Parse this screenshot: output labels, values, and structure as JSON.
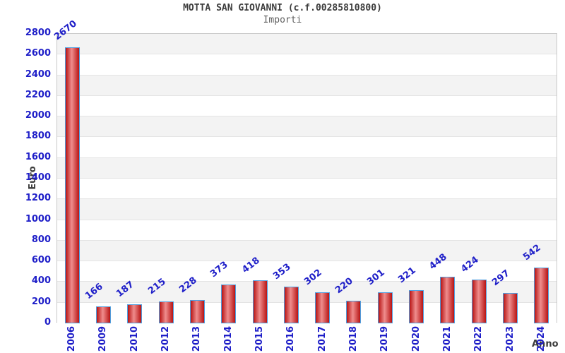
{
  "header": {
    "title": "MOTTA SAN GIOVANNI (c.f.00285810800)",
    "subtitle": "Importi"
  },
  "chart_data": {
    "type": "bar",
    "title": "MOTTA SAN GIOVANNI (c.f.00285810800)",
    "subtitle": "Importi",
    "xlabel": "Anno",
    "ylabel": "Euro",
    "categories": [
      "2006",
      "2009",
      "2010",
      "2012",
      "2013",
      "2014",
      "2015",
      "2016",
      "2017",
      "2018",
      "2019",
      "2020",
      "2021",
      "2022",
      "2023",
      "2024"
    ],
    "values": [
      2670,
      166,
      187,
      215,
      228,
      373,
      418,
      353,
      302,
      220,
      301,
      321,
      448,
      424,
      297,
      542
    ],
    "ylim": [
      0,
      2800
    ],
    "ytick_step": 200,
    "yticks": [
      0,
      200,
      400,
      600,
      800,
      1000,
      1200,
      1400,
      1600,
      1800,
      2000,
      2200,
      2400,
      2600,
      2800
    ],
    "grid": "alternating horizontal 200-unit bands, light gray lines",
    "legend_position": "none",
    "bar_labels_shown": true,
    "bar_label_rotation_deg": -38,
    "x_tick_rotation_deg": -90,
    "colors": {
      "tick_text": "#1e1ec8",
      "bar_label_text": "#1e1ec8",
      "bar_border": "#4f9fe0",
      "bar_fill_edge": "#b81414",
      "bar_fill_mid": "#ef8d8d",
      "band_gray": "#f3f3f3",
      "band_white": "#ffffff",
      "grid_line": "#e4e4e4",
      "plot_border": "#c9c9c9",
      "axis_line": "#a5a5a5",
      "title_text": "#3c3c3c",
      "subtitle_text": "#606060",
      "axis_title_text": "#3c3c3c"
    }
  }
}
